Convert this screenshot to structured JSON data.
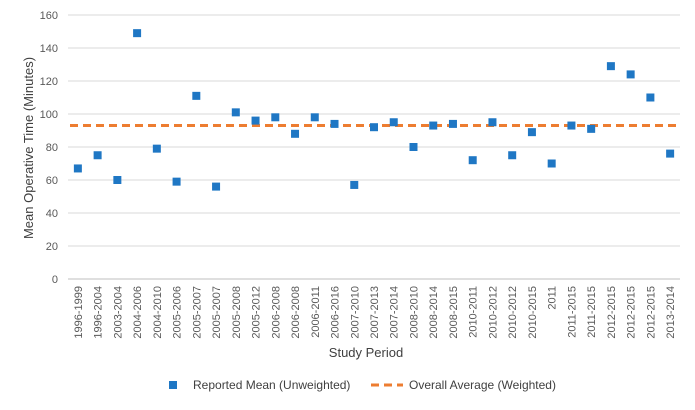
{
  "chart_data": {
    "type": "scatter",
    "title": "",
    "xlabel": "Study Period",
    "ylabel": "Mean Operative Time (Minutes)",
    "ylim": [
      0,
      160
    ],
    "yticks": [
      0,
      20,
      40,
      60,
      80,
      100,
      120,
      140,
      160
    ],
    "grid": "horizontal",
    "legend_position": "bottom",
    "categories": [
      "1996-1999",
      "1996-2004",
      "2003-2004",
      "2004-2006",
      "2004-2010",
      "2005-2006",
      "2005-2007",
      "2005-2007",
      "2005-2008",
      "2005-2012",
      "2006-2008",
      "2006-2008",
      "2006-2011",
      "2006-2016",
      "2007-2010",
      "2007-2013",
      "2007-2014",
      "2008-2010",
      "2008-2014",
      "2008-2015",
      "2010-2011",
      "2010-2012",
      "2010-2012",
      "2010-2015",
      "2011",
      "2011-2015",
      "2011-2015",
      "2012-2015",
      "2012-2015",
      "2012-2015",
      "2013-2014"
    ],
    "series": [
      {
        "name": "Reported Mean (Unweighted)",
        "kind": "marker",
        "color": "#1f77c4",
        "values": [
          67,
          75,
          60,
          149,
          79,
          59,
          111,
          56,
          101,
          96,
          98,
          88,
          98,
          94,
          57,
          92,
          95,
          80,
          93,
          94,
          72,
          95,
          75,
          89,
          70,
          93,
          91,
          129,
          124,
          110,
          76
        ]
      },
      {
        "name": "Overall Average (Weighted)",
        "kind": "dashed-line",
        "color": "#ed7d31",
        "value": 93
      }
    ]
  }
}
